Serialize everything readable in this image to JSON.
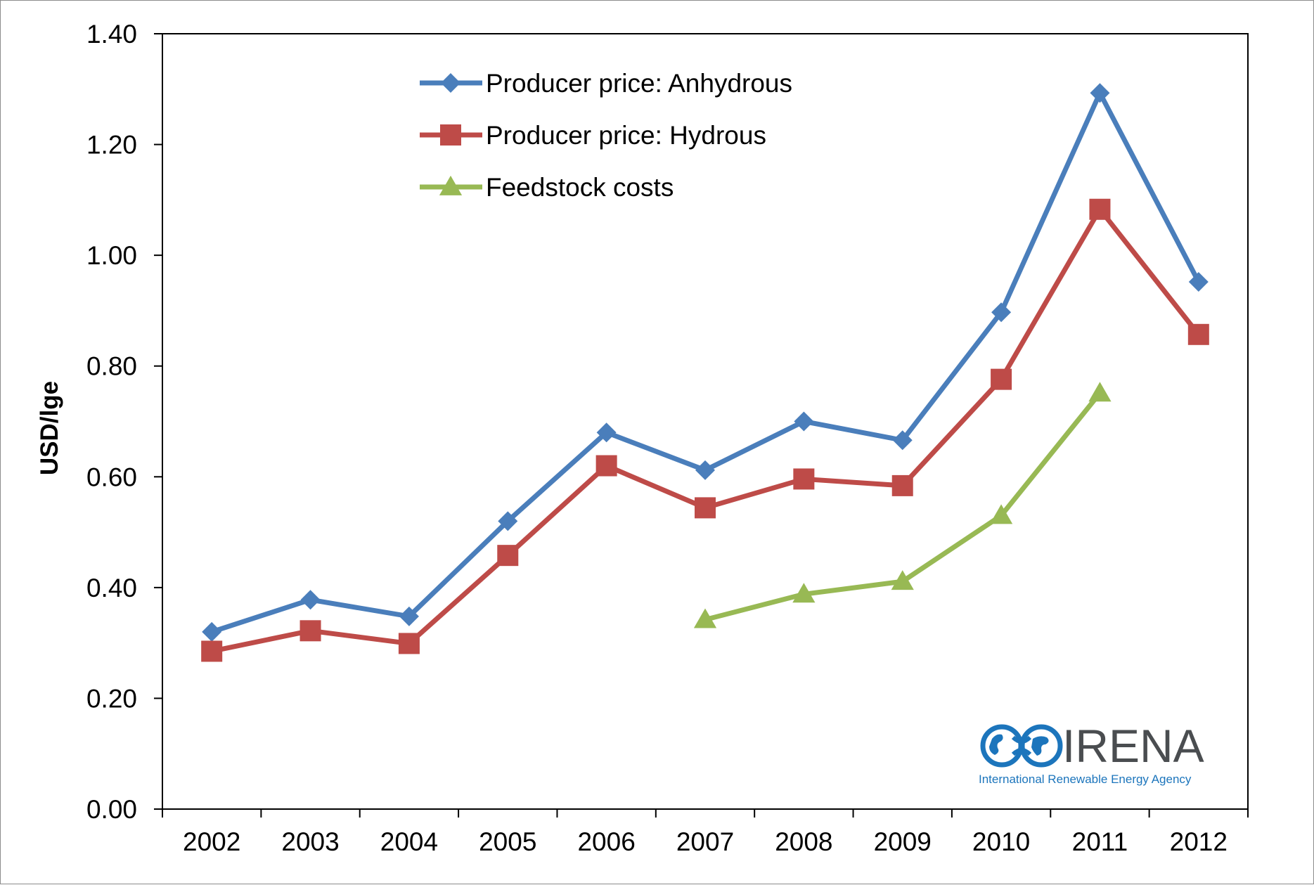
{
  "chart_data": {
    "type": "line",
    "title": "",
    "xlabel": "",
    "ylabel": "USD/lge",
    "categories": [
      "2002",
      "2003",
      "2004",
      "2005",
      "2006",
      "2007",
      "2008",
      "2009",
      "2010",
      "2011",
      "2012"
    ],
    "ylim": [
      0,
      1.4
    ],
    "yticks": [
      "0.00",
      "0.20",
      "0.40",
      "0.60",
      "0.80",
      "1.00",
      "1.20",
      "1.40"
    ],
    "grid": false,
    "legend_position": "top-center",
    "series": [
      {
        "name": "Producer price: Anhydrous",
        "marker": "diamond",
        "color": "#4a7ebb",
        "values": [
          0.32,
          0.378,
          0.348,
          0.52,
          0.68,
          0.612,
          0.7,
          0.666,
          0.897,
          1.293,
          0.952
        ]
      },
      {
        "name": "Producer price: Hydrous",
        "marker": "square",
        "color": "#be4b48",
        "values": [
          0.285,
          0.322,
          0.299,
          0.458,
          0.62,
          0.544,
          0.596,
          0.584,
          0.776,
          1.083,
          0.857
        ]
      },
      {
        "name": "Feedstock costs",
        "marker": "triangle",
        "color": "#98b954",
        "values": [
          null,
          null,
          null,
          null,
          null,
          0.342,
          0.388,
          0.411,
          0.53,
          0.751,
          null
        ]
      }
    ]
  },
  "logo": {
    "name": "IRENA",
    "subtitle": "International Renewable Energy Agency",
    "color": "#1c75bc"
  }
}
